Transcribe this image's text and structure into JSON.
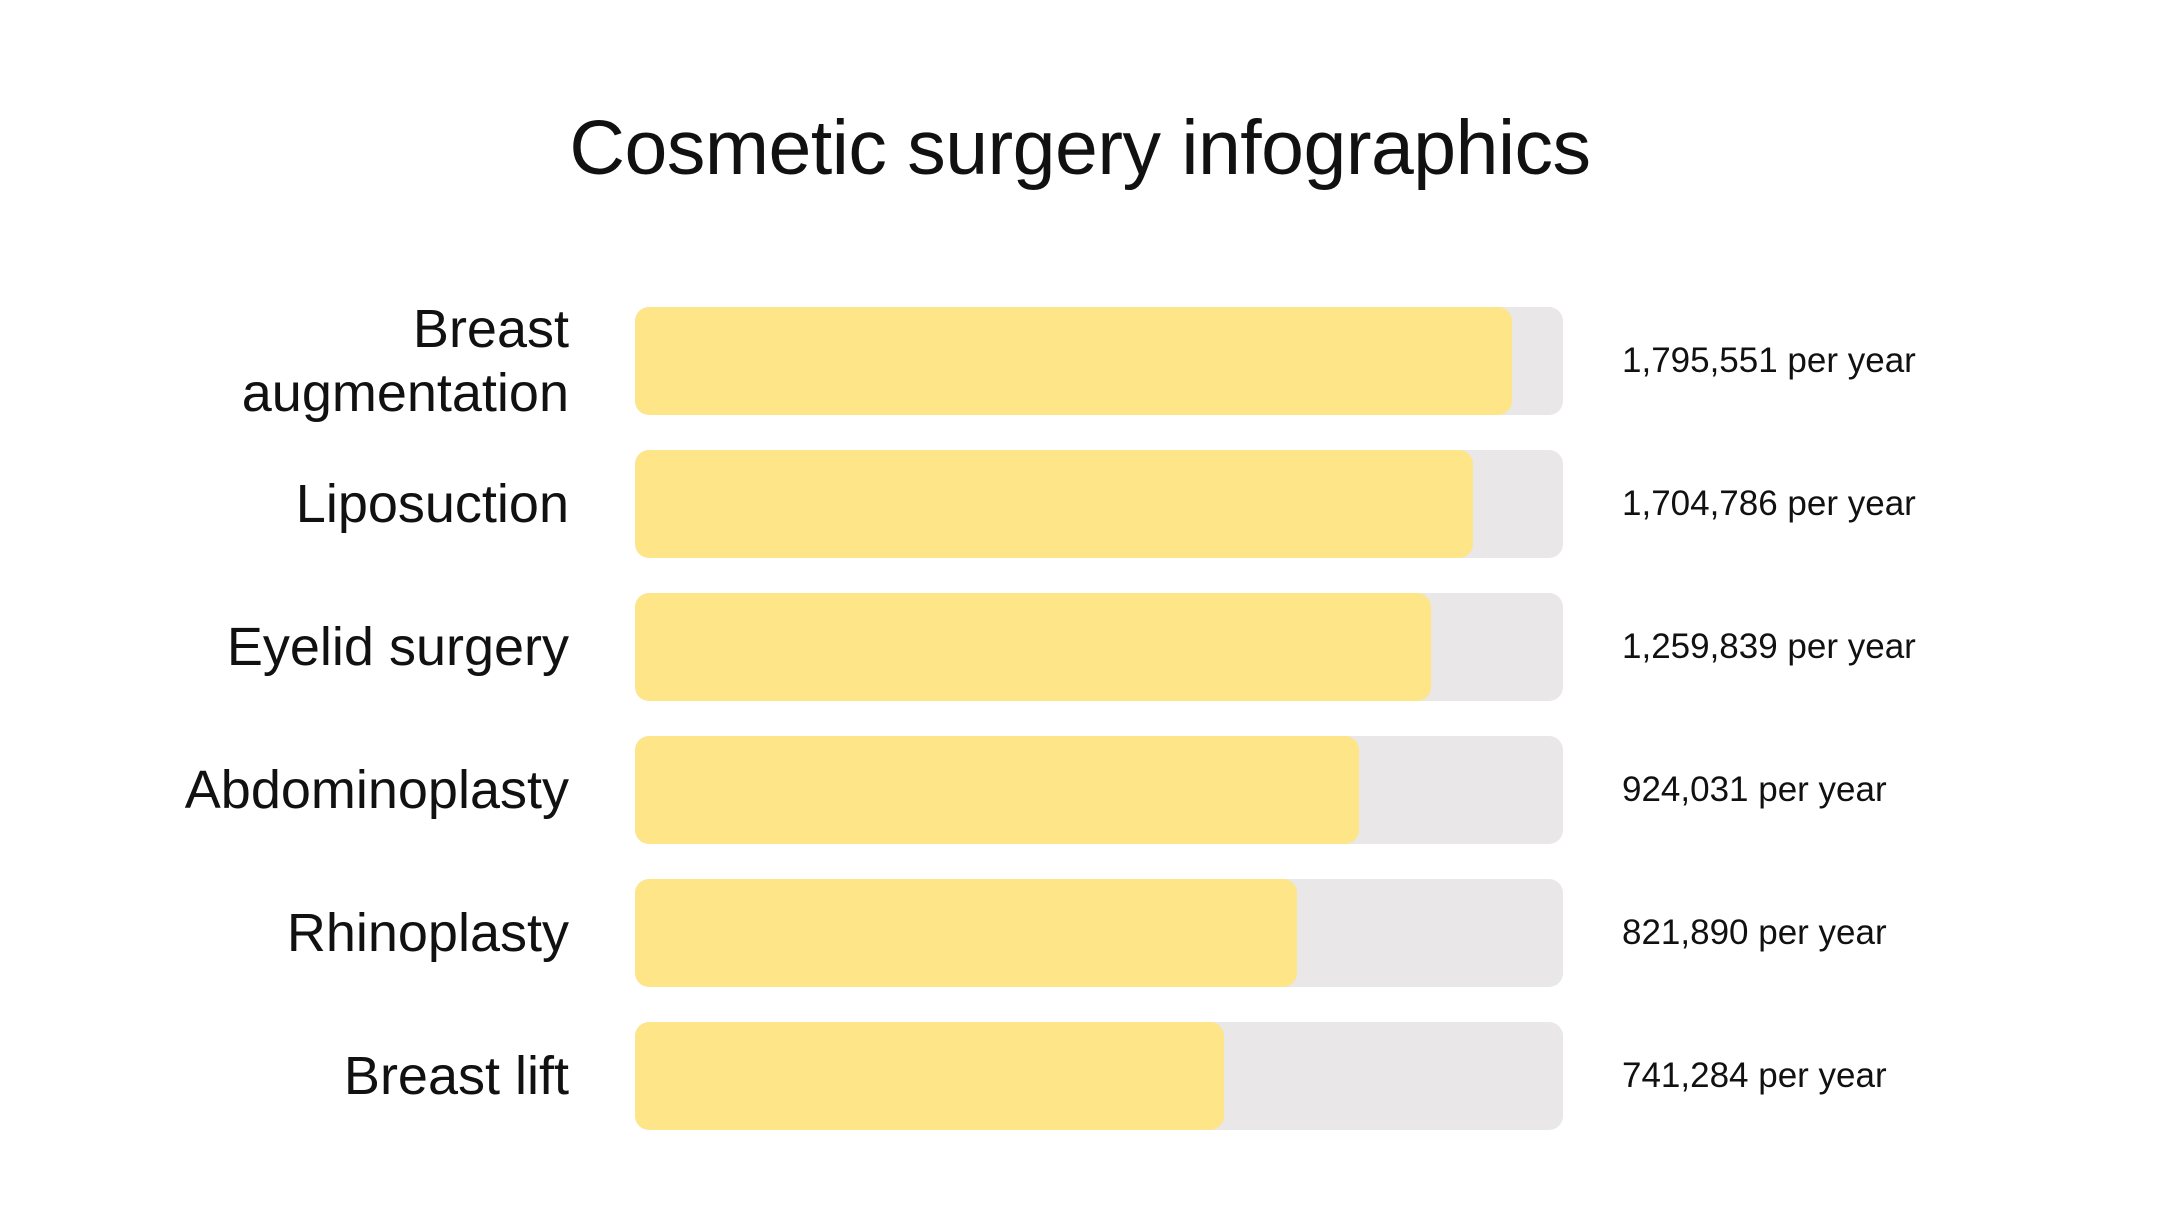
{
  "title": "Cosmetic surgery infographics",
  "colors": {
    "fill": "#fee587",
    "track": "#e9e7e8",
    "text": "#111111"
  },
  "chart_data": {
    "type": "bar",
    "orientation": "horizontal",
    "title": "Cosmetic surgery infographics",
    "categories": [
      "Breast augmentation",
      "Liposuction",
      "Eyelid surgery",
      "Abdominoplasty",
      "Rhinoplasty",
      "Breast lift"
    ],
    "category_lines": [
      [
        "Breast",
        "augmentation"
      ],
      [
        "Liposuction"
      ],
      [
        "Eyelid surgery"
      ],
      [
        "Abdominoplasty"
      ],
      [
        "Rhinoplasty"
      ],
      [
        "Breast lift"
      ]
    ],
    "values": [
      1795551,
      1704786,
      1259839,
      924031,
      821890,
      741284
    ],
    "value_labels": [
      "1,795,551 per year",
      "1,704,786 per year",
      "1,259,839 per year",
      "924,031 per year",
      "821,890 per year",
      "741,284 per year"
    ],
    "fill_fractions": [
      0.945,
      0.903,
      0.858,
      0.78,
      0.713,
      0.635
    ],
    "grid": false,
    "legend": "none"
  }
}
